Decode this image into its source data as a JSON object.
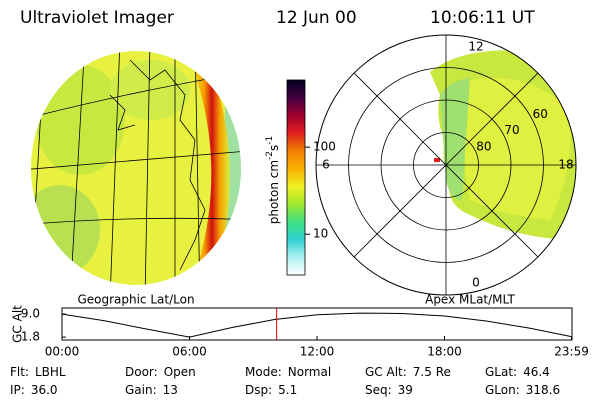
{
  "header": {
    "instrument": "Ultraviolet Imager",
    "date": "12 Jun 00",
    "time": "10:06:11 UT"
  },
  "left_panel": {
    "caption": "Geographic Lat/Lon"
  },
  "colorbar": {
    "unit": [
      "photon cm",
      "-2",
      "s",
      "-1"
    ],
    "log": true,
    "lim": [
      3.4,
      590
    ],
    "ticks": [
      10,
      100
    ],
    "colors": [
      "#ffffff",
      "#b0f0f0",
      "#30d0d0",
      "#40e080",
      "#a0e830",
      "#f0f020",
      "#f8b000",
      "#f08000",
      "#e02020",
      "#a00030",
      "#400040",
      "#000020"
    ]
  },
  "right_panel": {
    "caption": "Apex MLat/MLT",
    "lat_lim": [
      50,
      90
    ],
    "lat_ticks": [
      60,
      70,
      80
    ],
    "mlt_ticks": [
      0,
      6,
      12,
      18
    ]
  },
  "altitude": {
    "ylabel": "GC Alt",
    "xlim": [
      0,
      24
    ],
    "ylim": [
      0.9,
      10.9
    ],
    "yticks": [
      {
        "value": 9,
        "label": "9.0"
      },
      1.8
    ],
    "xticks": [
      {
        "value": 0,
        "label": "00:00"
      },
      {
        "value": 6,
        "label": "06:00"
      },
      {
        "value": 12,
        "label": "12:00"
      },
      {
        "value": 18,
        "label": "18:00"
      },
      {
        "value": 23.98,
        "label": "23:59"
      }
    ],
    "x": [
      0,
      2,
      4,
      6,
      8,
      10,
      12,
      14,
      16,
      18,
      20,
      22,
      24
    ],
    "values": [
      9.0,
      6.9,
      4.3,
      1.8,
      4.8,
      7.3,
      8.8,
      9.3,
      9.2,
      8.4,
      6.8,
      4.6,
      1.9
    ],
    "marker": 10.1
  },
  "footer": [
    [
      {
        "label": "Flt:",
        "value": "LBHL"
      },
      {
        "label": "Door:",
        "value": "Open"
      },
      {
        "label": "Mode:",
        "value": "Normal"
      },
      {
        "label": "GC Alt:",
        "value": "7.5 Re"
      },
      {
        "label": "GLat:",
        "value": "46.4"
      }
    ],
    [
      {
        "label": "IP:",
        "value": "36.0"
      },
      {
        "label": "Gain:",
        "value": "13"
      },
      {
        "label": "Dsp:",
        "value": "5.1"
      },
      {
        "label": "Seq:",
        "value": "39"
      },
      {
        "label": "GLon:",
        "value": "318.6"
      }
    ]
  ]
}
